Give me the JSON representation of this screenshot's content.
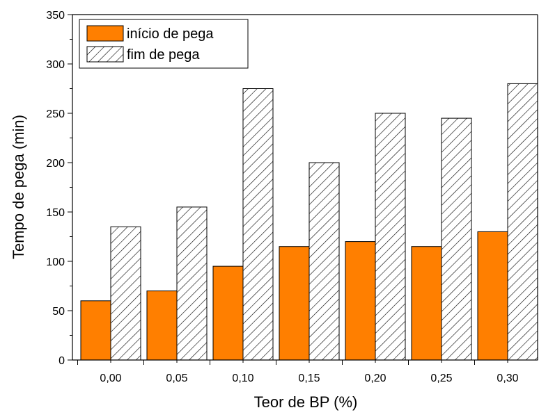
{
  "chart_data": {
    "type": "bar",
    "title": "",
    "xlabel": "Teor de BP (%)",
    "ylabel": "Tempo de pega (min)",
    "categories": [
      "0,00",
      "0,05",
      "0,10",
      "0,15",
      "0,20",
      "0,25",
      "0,30"
    ],
    "ylim": [
      0,
      350
    ],
    "yticks": [
      "0",
      "50",
      "100",
      "150",
      "200",
      "250",
      "300",
      "350"
    ],
    "legend_position": "top-left",
    "grid": false,
    "series": [
      {
        "name": "início de pega",
        "values": [
          60,
          70,
          95,
          115,
          120,
          115,
          130
        ],
        "color": "#ff7f00",
        "fill": "solid"
      },
      {
        "name": "fim de pega",
        "values": [
          135,
          155,
          275,
          200,
          250,
          245,
          280
        ],
        "color": "#ffffff",
        "fill": "hatch"
      }
    ]
  }
}
